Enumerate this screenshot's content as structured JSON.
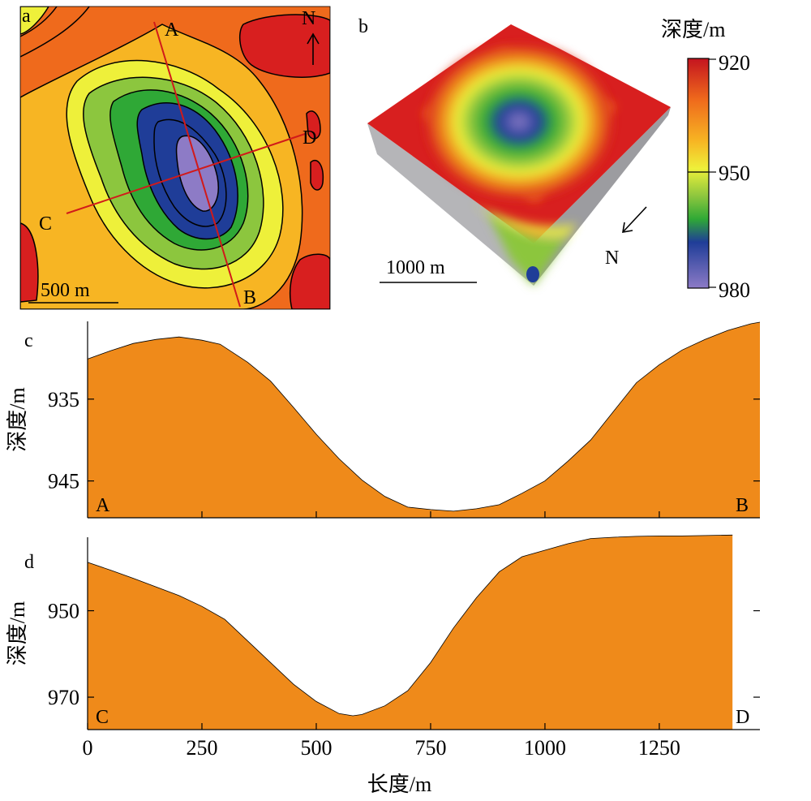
{
  "panels": {
    "a": {
      "letter": "a",
      "point_labels": [
        "A",
        "B",
        "C",
        "D"
      ],
      "north": "N",
      "scale_bar": "500 m"
    },
    "b": {
      "letter": "b",
      "north": "N",
      "scale_bar": "1000 m"
    },
    "colorbar": {
      "title": "深度/m",
      "ticks": [
        920,
        950,
        980
      ],
      "colors": [
        "#d81f1f",
        "#ef6a1c",
        "#f7b523",
        "#eef03a",
        "#8cc63e",
        "#2fa836",
        "#1f3d98",
        "#8d7bc6"
      ]
    },
    "c": {
      "letter": "c"
    },
    "d": {
      "letter": "d"
    }
  },
  "chart_data": [
    {
      "type": "area",
      "panel": "c",
      "title": "",
      "xlabel": "",
      "ylabel": "深度/m",
      "xlim": [
        0,
        1470
      ],
      "ylim": [
        949.5,
        925.5
      ],
      "y_inverted": true,
      "yticks": [
        935,
        945
      ],
      "xticks_minor": [
        250,
        500,
        750,
        1000,
        1250
      ],
      "endpoint_labels": [
        "A",
        "B"
      ],
      "fill_color": "#ef8a1a",
      "x": [
        0,
        50,
        100,
        150,
        200,
        250,
        290,
        350,
        400,
        450,
        500,
        550,
        600,
        650,
        700,
        750,
        800,
        850,
        900,
        950,
        1000,
        1050,
        1100,
        1150,
        1200,
        1250,
        1300,
        1350,
        1400,
        1450,
        1470
      ],
      "y": [
        930.1,
        929.1,
        928.2,
        927.7,
        927.4,
        927.8,
        928.3,
        930.5,
        932.8,
        936.0,
        939.3,
        942.3,
        944.9,
        946.9,
        948.2,
        948.5,
        948.7,
        948.4,
        947.9,
        946.5,
        945.0,
        942.6,
        940.0,
        936.5,
        933.0,
        930.8,
        929.0,
        927.7,
        926.6,
        925.8,
        925.6
      ]
    },
    {
      "type": "area",
      "panel": "d",
      "title": "",
      "xlabel": "长度/m",
      "ylabel": "深度/m",
      "xlim": [
        0,
        1470
      ],
      "ylim": [
        977.5,
        933
      ],
      "y_inverted": true,
      "yticks": [
        950,
        970
      ],
      "xticks": [
        0,
        250,
        500,
        750,
        1000,
        1250
      ],
      "endpoint_labels": [
        "C",
        "D"
      ],
      "fill_color": "#ef8a1a",
      "x": [
        0,
        50,
        100,
        150,
        200,
        250,
        300,
        350,
        400,
        450,
        500,
        550,
        580,
        600,
        650,
        700,
        750,
        800,
        850,
        900,
        950,
        1000,
        1050,
        1100,
        1150,
        1200,
        1250,
        1300,
        1350,
        1410
      ],
      "y": [
        938.8,
        940.6,
        942.5,
        944.5,
        946.5,
        949.0,
        952.0,
        957.0,
        962.0,
        967.0,
        971.0,
        973.8,
        974.3,
        974.0,
        972.0,
        968.5,
        962.0,
        954.0,
        947.0,
        941.0,
        937.5,
        936.0,
        934.5,
        933.3,
        933.0,
        932.8,
        932.7,
        932.7,
        932.6,
        932.5
      ]
    }
  ]
}
